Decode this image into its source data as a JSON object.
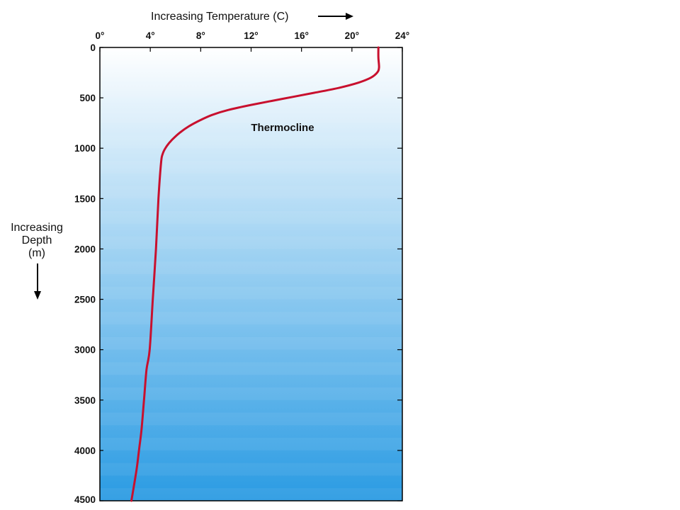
{
  "chart_data": {
    "type": "line",
    "title": "",
    "xlabel": "Increasing Temperature (C)",
    "ylabel_lines": [
      "Increasing",
      "Depth",
      "(m)"
    ],
    "x_range": [
      0,
      24
    ],
    "y_range": [
      0,
      4500
    ],
    "y_inverted": true,
    "x_ticks": [
      0,
      4,
      8,
      12,
      16,
      20,
      24
    ],
    "x_tick_labels": [
      "0°",
      "4°",
      "8°",
      "12°",
      "16°",
      "20°",
      "24°"
    ],
    "y_ticks": [
      0,
      500,
      1000,
      1500,
      2000,
      2500,
      3000,
      3500,
      4000,
      4500
    ],
    "y_tick_labels": [
      "0",
      "500",
      "1000",
      "1500",
      "2000",
      "2500",
      "3000",
      "3500",
      "4000",
      "4500"
    ],
    "background_gradient": {
      "top": "#ffffff",
      "bottom": "#2a9be3"
    },
    "line_color": "#c8102e",
    "series": [
      {
        "name": "",
        "x": [
          22.1,
          22.1,
          22.15,
          22.0,
          21.5,
          20.5,
          19.0,
          17.0,
          14.5,
          12.0,
          10.2,
          8.9,
          8.0,
          7.1,
          6.3,
          5.7,
          5.3,
          5.0,
          4.85,
          4.65,
          4.45,
          4.2,
          3.95,
          3.7,
          3.5,
          3.3,
          3.1,
          2.9,
          2.5
        ],
        "y": [
          0,
          100,
          200,
          250,
          300,
          350,
          400,
          450,
          510,
          570,
          620,
          670,
          720,
          780,
          850,
          920,
          980,
          1050,
          1150,
          1500,
          2000,
          2500,
          3000,
          3200,
          3500,
          3800,
          4000,
          4200,
          4500
        ]
      }
    ],
    "annotations": [
      {
        "text": "Thermocline",
        "x": 14.5,
        "y": 830,
        "color": "#c8102e"
      }
    ],
    "grid": false
  }
}
